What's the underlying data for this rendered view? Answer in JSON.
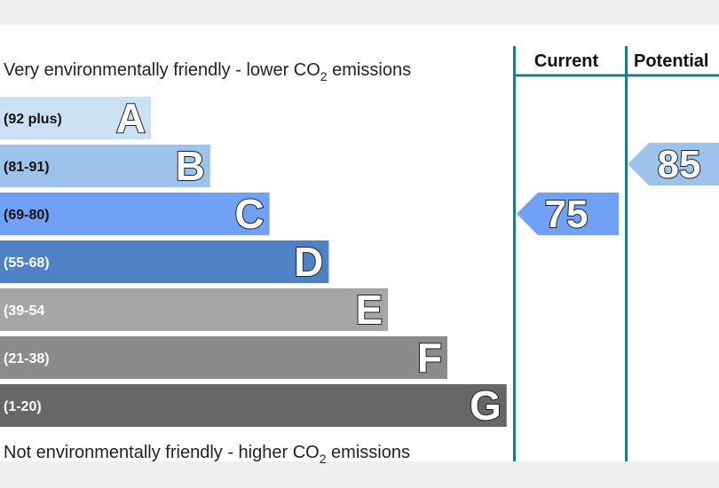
{
  "chart_data": {
    "type": "rating",
    "top_label": {
      "text": "Very environmentally friendly - lower CO",
      "sub": "2",
      "tail": " emissions"
    },
    "bottom_label": {
      "text": "Not environmentally friendly - higher CO",
      "sub": "2",
      "tail": " emissions"
    },
    "bands": [
      {
        "range": "(92 plus)",
        "letter": "A",
        "color": "#cce0f5"
      },
      {
        "range": "(81-91)",
        "letter": "B",
        "color": "#9dc3ed"
      },
      {
        "range": "(69-80)",
        "letter": "C",
        "color": "#70a1f7"
      },
      {
        "range": "(55-68)",
        "letter": "D",
        "color": "#4e81c6"
      },
      {
        "range": "(39-54",
        "letter": "E",
        "color": "#a6a6a6"
      },
      {
        "range": "(21-38)",
        "letter": "F",
        "color": "#8b8b8b"
      },
      {
        "range": "(1-20)",
        "letter": "G",
        "color": "#676767"
      }
    ],
    "columns": [
      {
        "name": "Current",
        "value": 75
      },
      {
        "name": "Potential",
        "value": 85
      }
    ]
  }
}
